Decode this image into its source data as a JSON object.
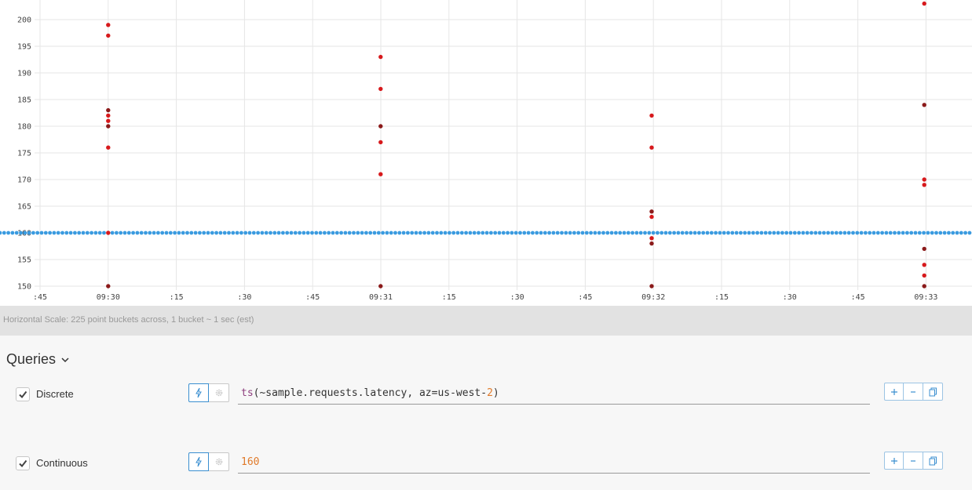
{
  "chart_data": {
    "type": "scatter",
    "y_ticks": [
      "150",
      "155",
      "160",
      "165",
      "170",
      "175",
      "180",
      "185",
      "190",
      "195",
      "200"
    ],
    "ylim": [
      149,
      204
    ],
    "x_ticks": [
      ":45",
      "09:30",
      ":15",
      ":30",
      ":45",
      "09:31",
      ":15",
      ":30",
      ":45",
      "09:32",
      ":15",
      ":30",
      ":45",
      "09:33"
    ],
    "grid": true,
    "series": [
      {
        "name": "Discrete",
        "color": "#d7191c",
        "points": [
          {
            "x": "09:30",
            "y": 199
          },
          {
            "x": "09:30",
            "y": 197
          },
          {
            "x": "09:30",
            "y": 183
          },
          {
            "x": "09:30",
            "y": 182
          },
          {
            "x": "09:30",
            "y": 181
          },
          {
            "x": "09:30",
            "y": 180
          },
          {
            "x": "09:30",
            "y": 176
          },
          {
            "x": "09:30",
            "y": 160
          },
          {
            "x": "09:30",
            "y": 150
          },
          {
            "x": "09:31",
            "y": 193
          },
          {
            "x": "09:31",
            "y": 187
          },
          {
            "x": "09:31",
            "y": 180
          },
          {
            "x": "09:31",
            "y": 177
          },
          {
            "x": "09:31",
            "y": 171
          },
          {
            "x": "09:31",
            "y": 150
          },
          {
            "x": "09:32",
            "y": 182
          },
          {
            "x": "09:32",
            "y": 176
          },
          {
            "x": "09:32",
            "y": 164
          },
          {
            "x": "09:32",
            "y": 163
          },
          {
            "x": "09:32",
            "y": 159
          },
          {
            "x": "09:32",
            "y": 158
          },
          {
            "x": "09:32",
            "y": 150
          },
          {
            "x": "09:33",
            "y": 203
          },
          {
            "x": "09:33",
            "y": 184
          },
          {
            "x": "09:33",
            "y": 170
          },
          {
            "x": "09:33",
            "y": 169
          },
          {
            "x": "09:33",
            "y": 157
          },
          {
            "x": "09:33",
            "y": 154
          },
          {
            "x": "09:33",
            "y": 152
          },
          {
            "x": "09:33",
            "y": 150
          }
        ]
      },
      {
        "name": "Continuous",
        "color": "#3a9be0",
        "constant": 160
      }
    ]
  },
  "scale_text": "Horizontal Scale: 225 point buckets across, 1 bucket ~ 1 sec (est)",
  "queries": {
    "title": "Queries",
    "rows": [
      {
        "name": "Discrete",
        "checked": true,
        "expr_fn": "ts",
        "expr_mid": "(~sample.requests.latency, az=us-west-",
        "expr_num": "2",
        "expr_end": ")"
      },
      {
        "name": "Continuous",
        "checked": true,
        "expr_value": "160"
      }
    ],
    "icons": {
      "run": "lightning-icon",
      "settings": "gear-icon",
      "add": "plus-icon",
      "remove": "minus-icon",
      "copy": "copy-icon"
    },
    "accent_color": "#3b8fd0"
  }
}
